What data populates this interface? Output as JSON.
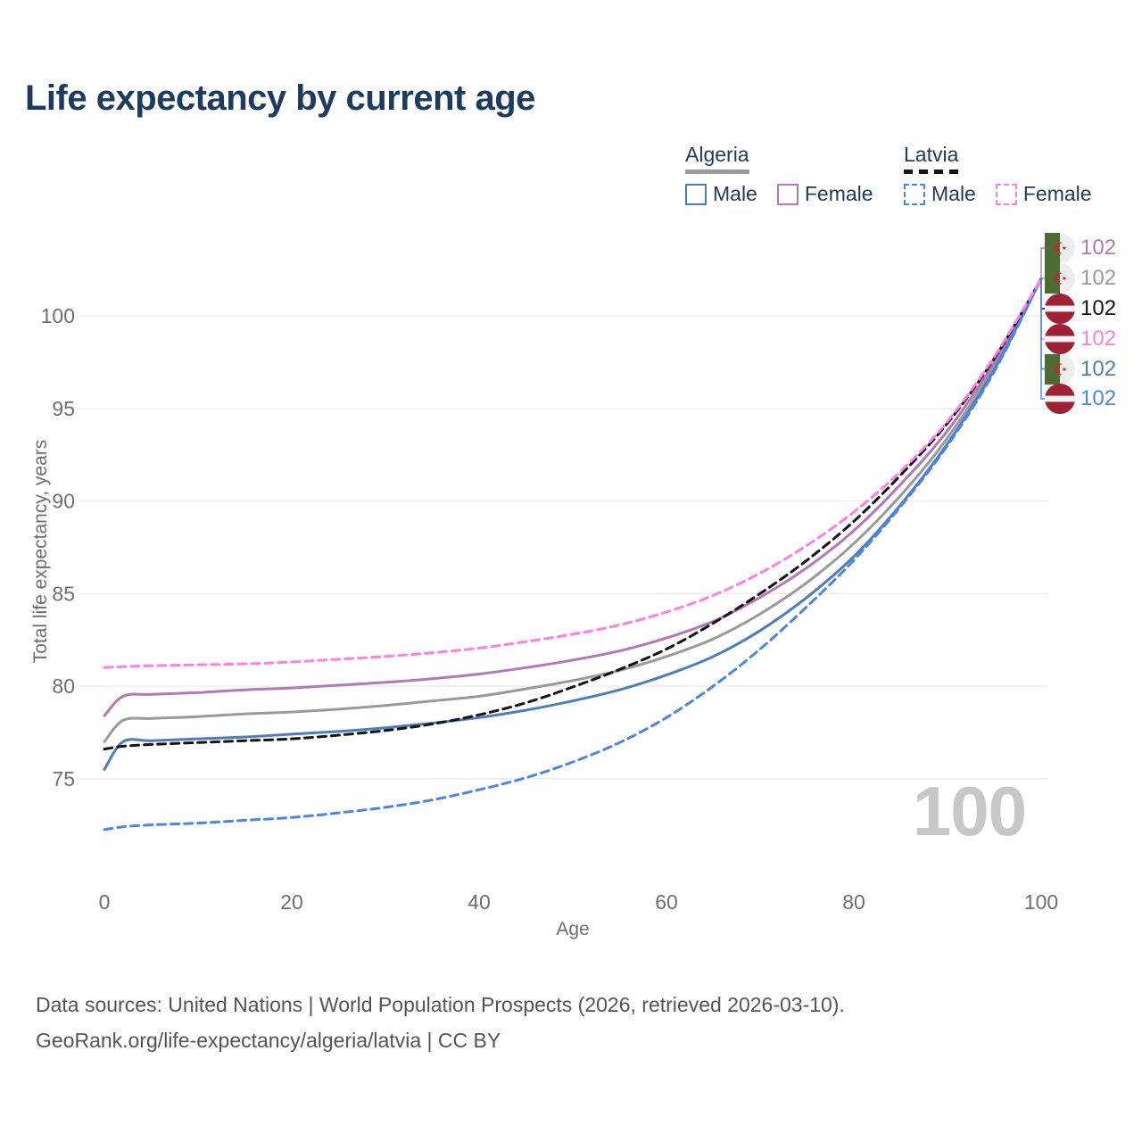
{
  "title": "Life expectancy by current age",
  "legend": {
    "groups": [
      {
        "title": "Algeria",
        "line_style": "solid",
        "line_color": "#9a9a9a",
        "items": [
          {
            "label": "Male",
            "color": "#4e7cbe",
            "dashed": false
          },
          {
            "label": "Female",
            "color": "#b478b6",
            "dashed": false
          }
        ]
      },
      {
        "title": "Latvia",
        "line_style": "dashed",
        "line_color": "#141414",
        "items": [
          {
            "label": "Male",
            "color": "#4a86e8",
            "dashed": true
          },
          {
            "label": "Female",
            "color": "#ff7fe1",
            "dashed": true
          }
        ]
      }
    ]
  },
  "chart_data": {
    "type": "line",
    "title": "Life expectancy by current age",
    "xlabel": "Age",
    "ylabel": "Total life expectancy, years",
    "x_ticks": [
      0,
      20,
      40,
      60,
      80,
      100
    ],
    "y_ticks": [
      75,
      80,
      85,
      90,
      95,
      100
    ],
    "xlim": [
      0,
      100
    ],
    "ylim": [
      71.5,
      103.5
    ],
    "grid": "horizontal",
    "legend_position": "top-right",
    "x": [
      0,
      2,
      5,
      10,
      15,
      20,
      25,
      30,
      35,
      40,
      45,
      50,
      55,
      60,
      65,
      70,
      75,
      80,
      85,
      90,
      95,
      100
    ],
    "series": [
      {
        "id": "algeria_both",
        "name": "Algeria Both sexes",
        "country": "Algeria",
        "color": "#9a9a9a",
        "dashed": false,
        "values": [
          77.0,
          78.15,
          78.25,
          78.35,
          78.5,
          78.6,
          78.75,
          78.95,
          79.2,
          79.45,
          79.85,
          80.3,
          80.85,
          81.6,
          82.55,
          83.9,
          85.6,
          87.7,
          90.3,
          93.4,
          97.3,
          102
        ]
      },
      {
        "id": "algeria_female",
        "name": "Algeria Female",
        "country": "Algeria",
        "color": "#b478b6",
        "dashed": false,
        "values": [
          78.4,
          79.45,
          79.55,
          79.65,
          79.8,
          79.9,
          80.05,
          80.2,
          80.4,
          80.65,
          81.0,
          81.4,
          81.9,
          82.6,
          83.5,
          84.8,
          86.4,
          88.4,
          90.9,
          93.8,
          97.5,
          102
        ]
      },
      {
        "id": "algeria_male",
        "name": "Algeria Male",
        "country": "Algeria",
        "color": "#4e7cbe",
        "dashed": false,
        "values": [
          75.5,
          77.0,
          77.05,
          77.15,
          77.25,
          77.4,
          77.55,
          77.75,
          78.0,
          78.3,
          78.7,
          79.2,
          79.8,
          80.6,
          81.6,
          83.0,
          84.8,
          87.0,
          89.8,
          93.1,
          97.1,
          102
        ]
      },
      {
        "id": "latvia_both",
        "name": "Latvia Both sexes",
        "country": "Latvia",
        "color": "#141414",
        "dashed": true,
        "values": [
          76.6,
          76.75,
          76.85,
          76.95,
          77.05,
          77.15,
          77.35,
          77.6,
          77.95,
          78.45,
          79.1,
          79.95,
          80.9,
          82.0,
          83.4,
          85.0,
          86.8,
          88.9,
          91.4,
          94.2,
          97.7,
          102
        ]
      },
      {
        "id": "latvia_male",
        "name": "Latvia Male",
        "country": "Latvia",
        "color": "#4a86e8",
        "dashed": true,
        "values": [
          72.25,
          72.4,
          72.5,
          72.6,
          72.75,
          72.9,
          73.15,
          73.45,
          73.85,
          74.4,
          75.05,
          75.9,
          76.95,
          78.3,
          80.0,
          82.0,
          84.3,
          86.8,
          89.7,
          93.0,
          97.0,
          102
        ]
      },
      {
        "id": "latvia_female",
        "name": "Latvia Female",
        "country": "Latvia",
        "color": "#ff7fe1",
        "dashed": true,
        "values": [
          81.0,
          81.05,
          81.1,
          81.15,
          81.2,
          81.3,
          81.45,
          81.6,
          81.8,
          82.05,
          82.4,
          82.8,
          83.3,
          84.0,
          84.9,
          86.1,
          87.6,
          89.4,
          91.6,
          94.3,
          97.8,
          102
        ]
      }
    ],
    "end_labels": [
      {
        "series": "algeria_female",
        "flag": "algeria",
        "value": "102"
      },
      {
        "series": "algeria_both",
        "flag": "algeria",
        "value": "102"
      },
      {
        "series": "latvia_both",
        "flag": "latvia",
        "value": "102"
      },
      {
        "series": "latvia_female",
        "flag": "latvia",
        "value": "102"
      },
      {
        "series": "algeria_male",
        "flag": "algeria",
        "value": "102"
      },
      {
        "series": "latvia_male",
        "flag": "latvia",
        "value": "102"
      }
    ]
  },
  "flags": {
    "algeria": {
      "green": "#4c6b35",
      "white": "#ededed",
      "emblem": "#c22a3a"
    },
    "latvia": {
      "red": "#9d2235",
      "white": "#f3f3f3"
    }
  },
  "watermark": "100",
  "footer": {
    "line1": "Data sources: United Nations | World Population Prospects (2026, retrieved 2026-03-10).",
    "line2": "GeoRank.org/life-expectancy/algeria/latvia | CC BY"
  }
}
